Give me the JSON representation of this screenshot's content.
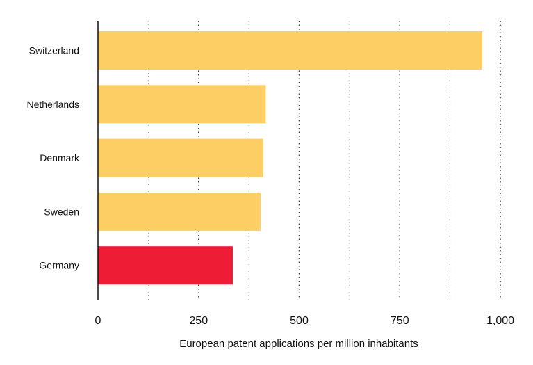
{
  "chart_data": {
    "type": "bar",
    "orientation": "horizontal",
    "title": "",
    "xlabel": "European patent applications per million inhabitants",
    "ylabel": "",
    "categories": [
      "Switzerland",
      "Netherlands",
      "Denmark",
      "Sweden",
      "Germany"
    ],
    "values": [
      955,
      417,
      411,
      404,
      335
    ],
    "bar_colors": [
      "#FDCE63",
      "#FDCE63",
      "#FDCE63",
      "#FDCE63",
      "#EE1C35"
    ],
    "xlim": [
      0,
      1000
    ],
    "xticks": [
      0,
      250,
      500,
      750,
      1000
    ],
    "xtick_labels": [
      "0",
      "250",
      "500",
      "750",
      "1,000"
    ],
    "minor_gridlines": [
      125,
      375,
      625,
      875
    ],
    "grid": true,
    "legend": "none"
  }
}
